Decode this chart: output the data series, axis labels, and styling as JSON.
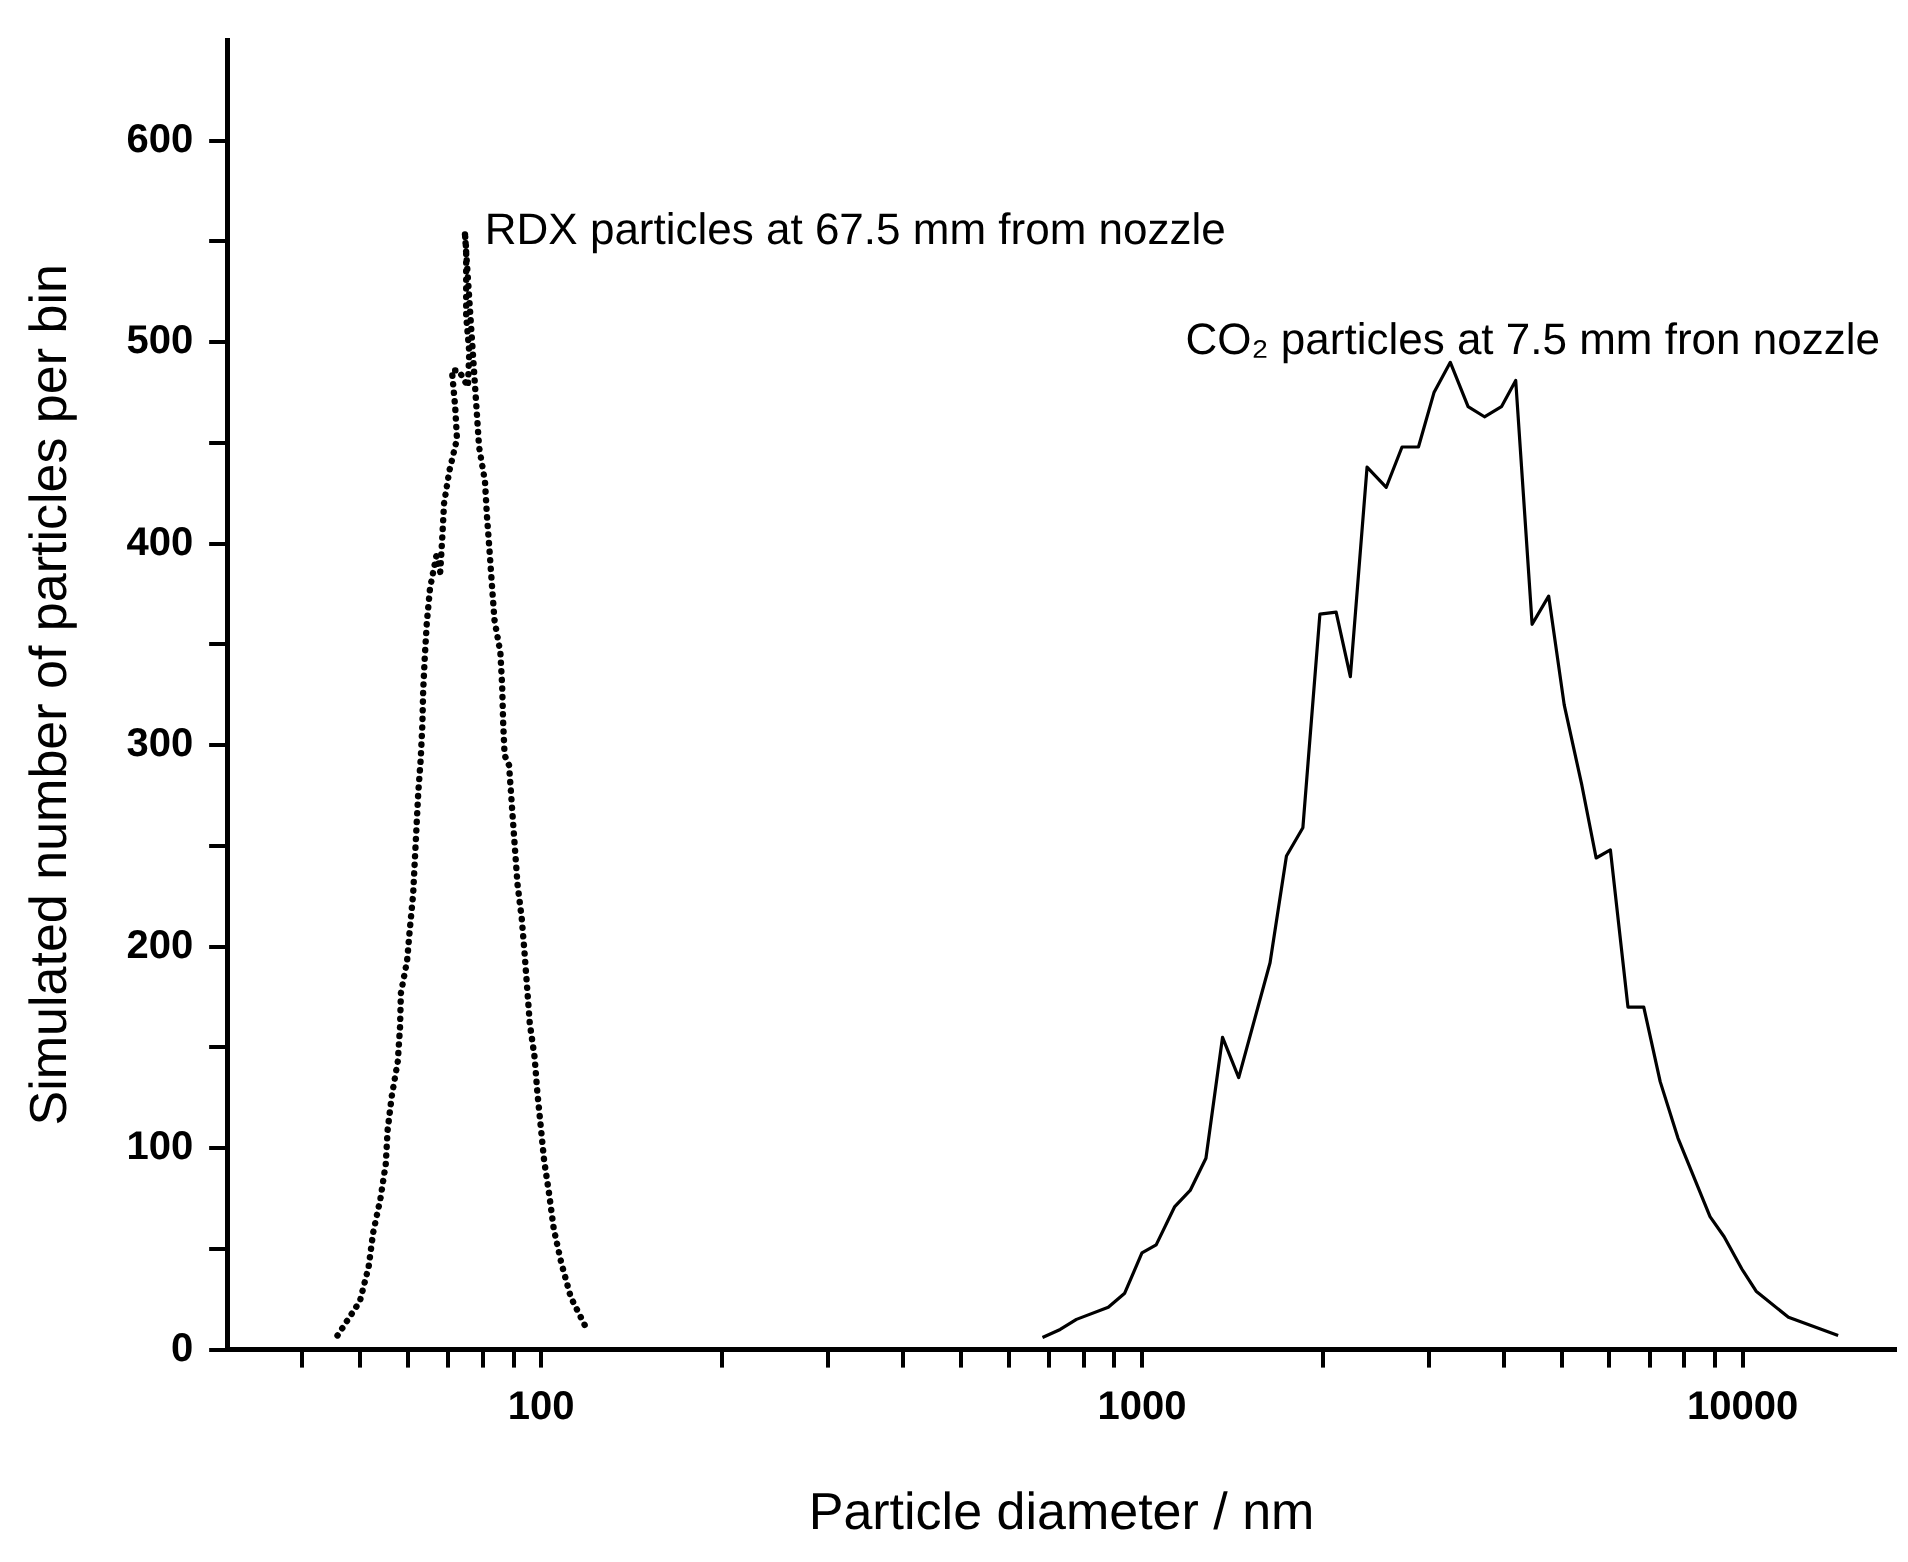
{
  "chart_data": {
    "type": "line",
    "xlabel": "Particle diameter / nm",
    "ylabel": "Simulated number of particles per bin",
    "log": "x",
    "legend": false,
    "grid": false,
    "marker": "none",
    "xlim": [
      30,
      18000
    ],
    "xticks": [
      {
        "value": 40,
        "label": null
      },
      {
        "value": 50,
        "label": null
      },
      {
        "value": 60,
        "label": null
      },
      {
        "value": 70,
        "label": null
      },
      {
        "value": 80,
        "label": null
      },
      {
        "value": 90,
        "label": null
      },
      100,
      {
        "value": 200,
        "label": null
      },
      {
        "value": 300,
        "label": null
      },
      {
        "value": 400,
        "label": null
      },
      {
        "value": 500,
        "label": null
      },
      {
        "value": 600,
        "label": null
      },
      {
        "value": 700,
        "label": null
      },
      {
        "value": 800,
        "label": null
      },
      {
        "value": 900,
        "label": null
      },
      1000,
      {
        "value": 2000,
        "label": null
      },
      {
        "value": 3000,
        "label": null
      },
      {
        "value": 4000,
        "label": null
      },
      {
        "value": 5000,
        "label": null
      },
      {
        "value": 6000,
        "label": null
      },
      {
        "value": 7000,
        "label": null
      },
      {
        "value": 8000,
        "label": null
      },
      {
        "value": 9000,
        "label": null
      },
      10000
    ],
    "ylim": [
      0,
      650
    ],
    "yticks": [
      0,
      {
        "value": 50,
        "label": null
      },
      100,
      {
        "value": 150,
        "label": null
      },
      200,
      {
        "value": 250,
        "label": null
      },
      300,
      {
        "value": 350,
        "label": null
      },
      400,
      {
        "value": 450,
        "label": null
      },
      500,
      {
        "value": 550,
        "label": null
      },
      600
    ],
    "series": [
      {
        "name": "RDX particles at 67.5 mm from nozzle",
        "color": "#000000",
        "line_style": "dotted",
        "x": [
          45.8,
          49.9,
          51.6,
          52.5,
          54.0,
          55.1,
          55.5,
          56.4,
          57.7,
          58.2,
          58.4,
          59.8,
          60.4,
          61.2,
          61.6,
          62.4,
          63.0,
          63.4,
          63.6,
          64.0,
          64.5,
          65.3,
          66.9,
          67.9,
          68.4,
          68.9,
          70.3,
          72.4,
          71.9,
          71.0,
          72.9,
          75.5,
          75.9,
          75.0,
          75.0,
          75.0,
          74.6,
          78.8,
          80.6,
          81.2,
          82.0,
          82.8,
          83.6,
          85.5,
          86.1,
          86.4,
          86.9,
          88.4,
          89.6,
          91.3,
          92.8,
          93.8,
          95.7,
          97.5,
          98.5,
          101.1,
          103.1,
          104.9,
          108.0,
          112.0,
          119.6
        ],
        "values": [
          7,
          24,
          41,
          58,
          75,
          92,
          109,
          126,
          143,
          160,
          177,
          193,
          208,
          226,
          243,
          276,
          293,
          310,
          327,
          344,
          361,
          378,
          394,
          386,
          402,
          420,
          436,
          452,
          468,
          486,
          486,
          478,
          495,
          513,
          530,
          546,
          555,
          448,
          431,
          414,
          397,
          379,
          362,
          346,
          329,
          312,
          295,
          290,
          265,
          231,
          214,
          197,
          162,
          145,
          128,
          94,
          77,
          60,
          43,
          26,
          9
        ]
      },
      {
        "name": "CO₂ particles at 7.5 mm fron nozzle",
        "color": "#000000",
        "line_style": "solid",
        "x": [
          683,
          731,
          778,
          879,
          936,
          1000,
          1056,
          1134,
          1203,
          1278,
          1362,
          1449,
          1634,
          1740,
          1853,
          1978,
          2105,
          2223,
          2370,
          2551,
          2710,
          2886,
          3063,
          3261,
          3491,
          3717,
          3967,
          4190,
          4462,
          4754,
          5046,
          5400,
          5703,
          6023,
          6443,
          6845,
          7290,
          7804,
          8824,
          9315,
          9970,
          10530,
          11920,
          14420
        ],
        "values": [
          6,
          10,
          15,
          21,
          28,
          48,
          52,
          71,
          79,
          95,
          155,
          135,
          192,
          245,
          259,
          365,
          366,
          334,
          438,
          428,
          448,
          448,
          475,
          490,
          468,
          463,
          468,
          481,
          360,
          374,
          320,
          280,
          244,
          248,
          170,
          170,
          133,
          105,
          66,
          56,
          40,
          29,
          16,
          7
        ]
      }
    ]
  }
}
